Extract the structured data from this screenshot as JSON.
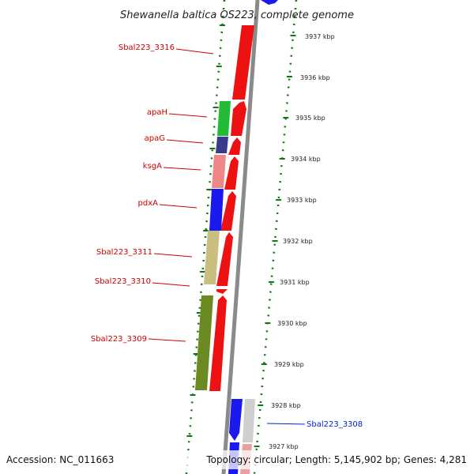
{
  "title": "Shewanella baltica OS223, complete genome",
  "footer": {
    "accession": "Accession: NC_011663",
    "topology": "Topology: circular; Length: 5,145,902 bp; Genes: 4,281"
  },
  "colors": {
    "cds": "#ee1111",
    "label_red": "#cc0000",
    "label_blue": "#0022cc",
    "tick_green": "#117711",
    "backbone": "#8a8a8a",
    "green": "#22bb33",
    "navy": "#3a3a8c",
    "pink": "#ee8888",
    "blue": "#1a1aee",
    "khaki": "#c8bf80",
    "olive": "#6b8a22",
    "grey": "#cfcfcf"
  },
  "kbp_labels": [
    "3937 kbp",
    "3936 kbp",
    "3935 kbp",
    "3934 kbp",
    "3933 kbp",
    "3932 kbp",
    "3931 kbp",
    "3930 kbp",
    "3929 kbp",
    "3928 kbp",
    "3927 kbp"
  ],
  "gene_labels": [
    {
      "text": "Sbal223_3316",
      "color": "red"
    },
    {
      "text": "apaH",
      "color": "red"
    },
    {
      "text": "apaG",
      "color": "red"
    },
    {
      "text": "ksgA",
      "color": "red"
    },
    {
      "text": "pdxA",
      "color": "red"
    },
    {
      "text": "Sbal223_3311",
      "color": "red"
    },
    {
      "text": "Sbal223_3310",
      "color": "red"
    },
    {
      "text": "Sbal223_3309",
      "color": "red"
    },
    {
      "text": "Sbal223_3308",
      "color": "blue"
    }
  ]
}
